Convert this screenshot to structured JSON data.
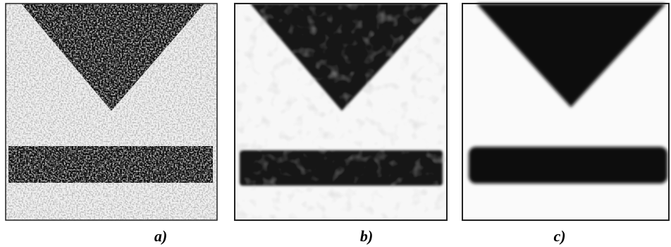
{
  "panels": [
    {
      "label": "a)"
    },
    {
      "label": "b)"
    },
    {
      "label": "c)"
    }
  ]
}
